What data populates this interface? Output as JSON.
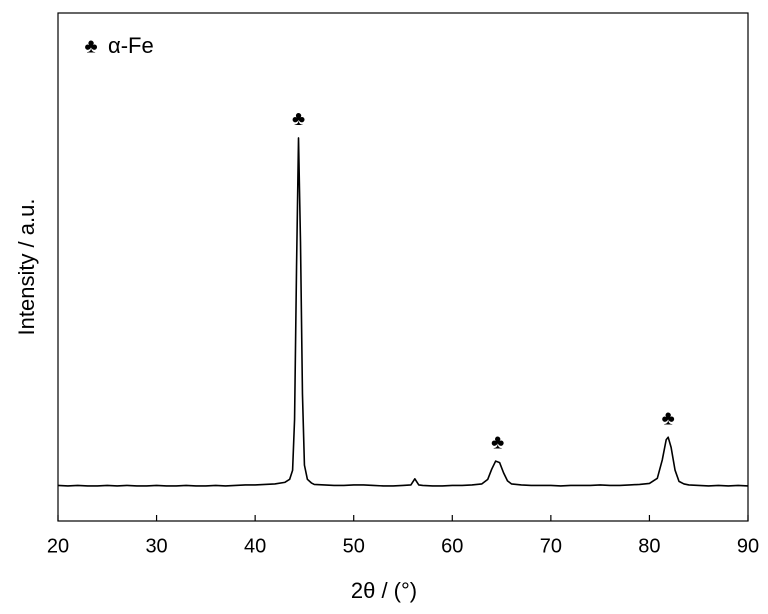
{
  "chart_data": {
    "type": "line",
    "xlabel": "2θ / (°)",
    "ylabel": "Intensity / a.u.",
    "x": [
      20,
      21,
      22,
      23,
      24,
      25,
      26,
      27,
      28,
      29,
      30,
      31,
      32,
      33,
      34,
      35,
      36,
      37,
      38,
      39,
      40,
      41,
      42,
      43,
      43.5,
      43.8,
      44.0,
      44.2,
      44.4,
      44.6,
      44.8,
      45.0,
      45.3,
      45.7,
      46,
      47,
      48,
      49,
      50,
      51,
      52,
      53,
      54,
      55,
      55.8,
      56.2,
      56.6,
      57,
      58,
      59,
      60,
      61,
      62,
      63,
      63.6,
      64.0,
      64.4,
      64.8,
      65.2,
      65.6,
      66,
      67,
      68,
      69,
      70,
      71,
      72,
      73,
      74,
      75,
      76,
      77,
      78,
      79,
      80,
      80.8,
      81.3,
      81.7,
      81.9,
      82.2,
      82.6,
      83.0,
      83.5,
      84,
      85,
      86,
      87,
      88,
      89,
      90
    ],
    "series": [
      {
        "name": "α-Fe",
        "marker": "♣",
        "color": "#000000",
        "values": [
          7.0,
          6.9,
          7.0,
          6.9,
          6.9,
          7.0,
          6.9,
          7.0,
          6.9,
          6.9,
          7.0,
          6.9,
          6.9,
          7.0,
          6.9,
          6.9,
          7.0,
          6.9,
          7.0,
          7.1,
          7.1,
          7.2,
          7.3,
          7.6,
          8.2,
          10,
          20,
          50,
          75.4,
          55,
          25,
          11,
          8.2,
          7.5,
          7.2,
          7.1,
          7.0,
          7.0,
          7.1,
          7.1,
          7.0,
          6.9,
          6.9,
          7.0,
          7.1,
          8.3,
          7.1,
          7.0,
          6.9,
          6.9,
          7.0,
          7.0,
          7.1,
          7.3,
          8.2,
          10.2,
          11.8,
          11.5,
          9.5,
          7.9,
          7.3,
          7.1,
          7.0,
          7.0,
          7.0,
          6.9,
          7.0,
          7.0,
          7.0,
          7.1,
          7.0,
          7.0,
          7.1,
          7.2,
          7.4,
          8.4,
          12,
          16,
          16.5,
          14.5,
          10,
          7.8,
          7.3,
          7.1,
          7.0,
          6.9,
          7.0,
          6.9,
          7.0,
          6.9
        ]
      }
    ],
    "annotations": [
      {
        "text": "♣",
        "x": 44.4,
        "y": 79
      },
      {
        "text": "♣",
        "x": 64.6,
        "y": 15.3
      },
      {
        "text": "♣",
        "x": 81.9,
        "y": 20
      }
    ],
    "xlim": [
      20,
      90
    ],
    "xticks": [
      20,
      30,
      40,
      50,
      60,
      70,
      80,
      90
    ],
    "ylim": [
      0,
      100
    ]
  }
}
